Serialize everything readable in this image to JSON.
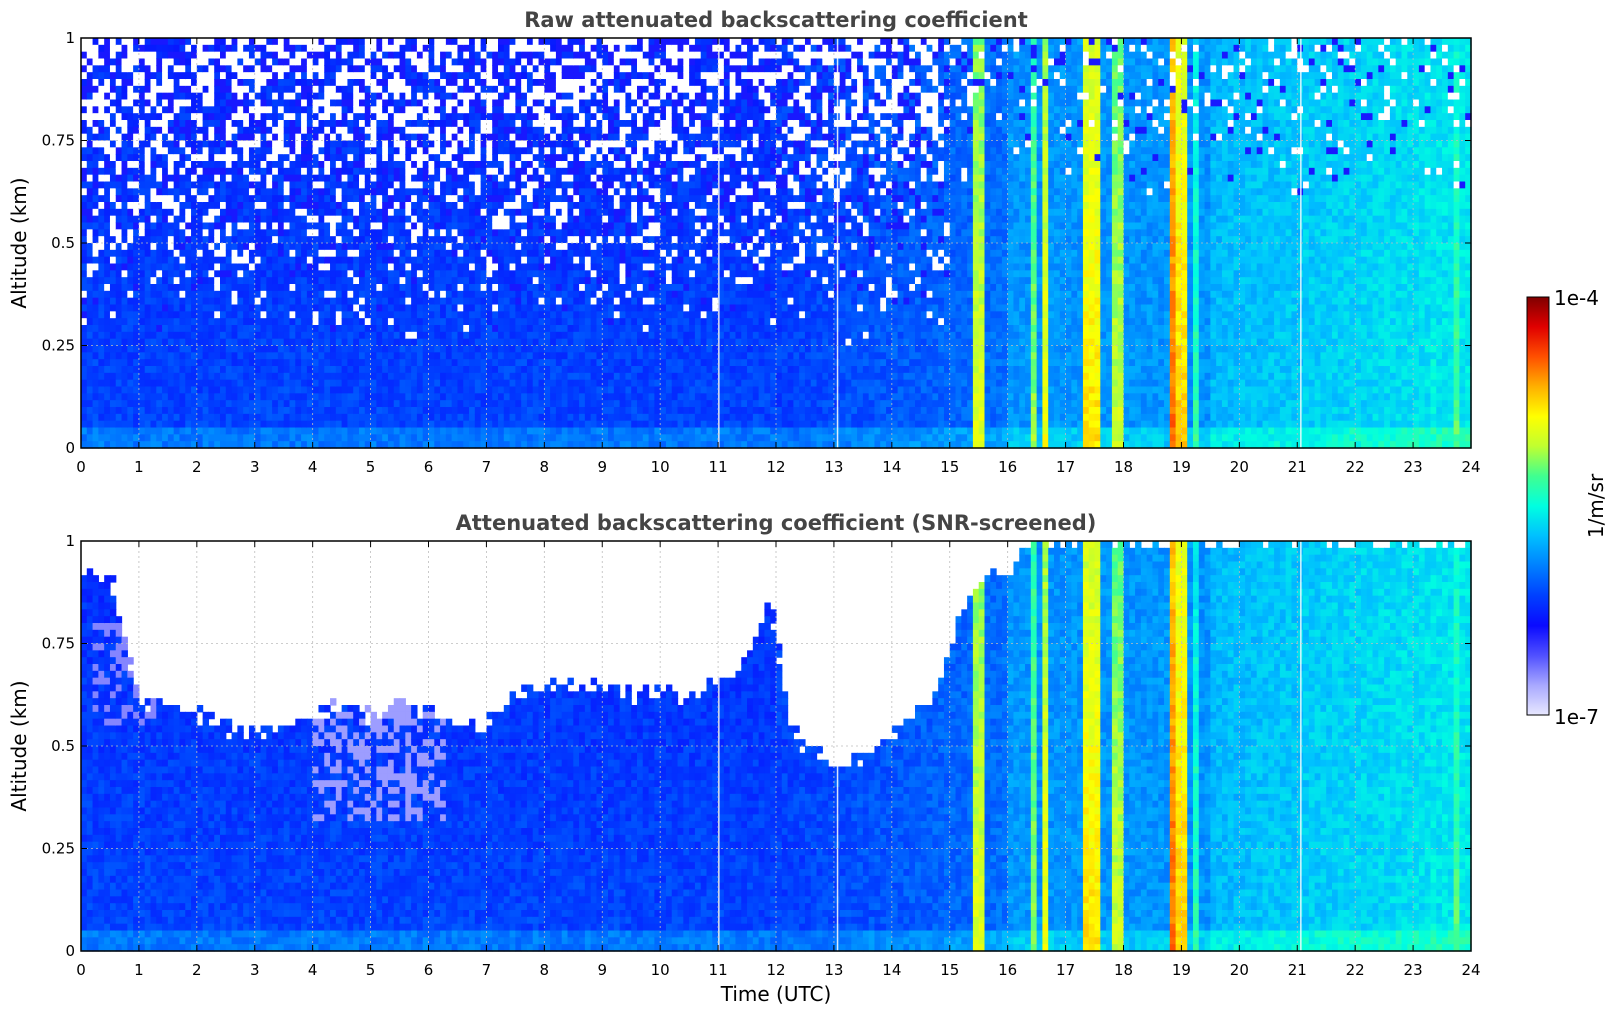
{
  "chart_data": [
    {
      "type": "heatmap",
      "title": "Raw attenuated backscattering coefficient",
      "xlabel": "",
      "ylabel": "Altitude (km)",
      "xlim": [
        0,
        24
      ],
      "ylim": [
        0,
        1
      ],
      "x_ticks": [
        "0",
        "1",
        "2",
        "3",
        "4",
        "5",
        "6",
        "7",
        "8",
        "9",
        "10",
        "11",
        "12",
        "13",
        "14",
        "15",
        "16",
        "17",
        "18",
        "19",
        "20",
        "21",
        "22",
        "23",
        "24"
      ],
      "y_ticks": [
        "0",
        "0.25",
        "0.5",
        "0.75",
        "1"
      ],
      "grid": true,
      "color_scale": "log",
      "bright_bands_utc": [
        15.5,
        16.5,
        16.65,
        17.4,
        17.5,
        17.9,
        18.85,
        19.0
      ],
      "gap_lines_utc": [
        11.0,
        13.05,
        21.05
      ]
    },
    {
      "type": "heatmap",
      "title": "Attenuated backscattering coefficient (SNR-screened)",
      "xlabel": "Time (UTC)",
      "ylabel": "Altitude (km)",
      "xlim": [
        0,
        24
      ],
      "ylim": [
        0,
        1
      ],
      "x_ticks": [
        "0",
        "1",
        "2",
        "3",
        "4",
        "5",
        "6",
        "7",
        "8",
        "9",
        "10",
        "11",
        "12",
        "13",
        "14",
        "15",
        "16",
        "17",
        "18",
        "19",
        "20",
        "21",
        "22",
        "23",
        "24"
      ],
      "y_ticks": [
        "0",
        "0.25",
        "0.5",
        "0.75",
        "1"
      ],
      "grid": true,
      "color_scale": "log",
      "screened_top_km": [
        [
          0,
          0.92
        ],
        [
          0.5,
          0.92
        ],
        [
          1.0,
          0.6
        ],
        [
          1.5,
          0.62
        ],
        [
          2.0,
          0.57
        ],
        [
          2.5,
          0.55
        ],
        [
          3.0,
          0.53
        ],
        [
          3.5,
          0.54
        ],
        [
          4.0,
          0.57
        ],
        [
          4.5,
          0.61
        ],
        [
          5.0,
          0.57
        ],
        [
          5.5,
          0.6
        ],
        [
          6.0,
          0.58
        ],
        [
          6.5,
          0.56
        ],
        [
          7.0,
          0.55
        ],
        [
          7.5,
          0.63
        ],
        [
          8.0,
          0.65
        ],
        [
          8.5,
          0.64
        ],
        [
          9.0,
          0.66
        ],
        [
          9.5,
          0.62
        ],
        [
          10.0,
          0.64
        ],
        [
          10.5,
          0.62
        ],
        [
          11.0,
          0.66
        ],
        [
          11.5,
          0.7
        ],
        [
          11.9,
          0.86
        ],
        [
          12.2,
          0.58
        ],
        [
          12.5,
          0.5
        ],
        [
          13.0,
          0.46
        ],
        [
          13.5,
          0.47
        ],
        [
          14.0,
          0.52
        ],
        [
          14.5,
          0.58
        ],
        [
          14.8,
          0.64
        ],
        [
          15.0,
          0.72
        ],
        [
          15.3,
          0.88
        ],
        [
          15.6,
          0.92
        ],
        [
          16.0,
          0.92
        ],
        [
          16.4,
          1.0
        ],
        [
          24.0,
          1.0
        ]
      ]
    }
  ],
  "colorbar": {
    "label": "1/m/sr",
    "max_label": "1e-4",
    "min_label": "1e-7",
    "colormap": [
      "#e8e8ff",
      "#a8a8ff",
      "#5050ff",
      "#0a0aff",
      "#0040ff",
      "#0080ff",
      "#00c0ff",
      "#00ffe0",
      "#40ff90",
      "#c0ff30",
      "#ffff00",
      "#ffb000",
      "#ff5000",
      "#e00000",
      "#800000"
    ]
  }
}
